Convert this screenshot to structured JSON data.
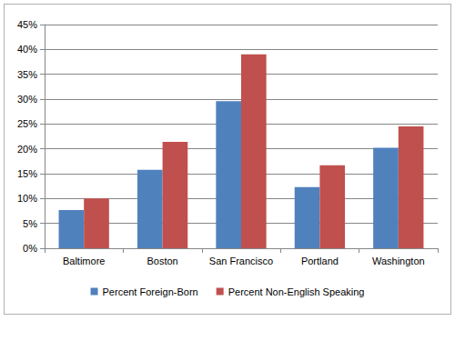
{
  "chart_data": {
    "type": "bar",
    "categories": [
      "Baltimore",
      "Boston",
      "San Francisco",
      "Portland",
      "Washington"
    ],
    "series": [
      {
        "name": "Percent Foreign-Born",
        "color": "#4f81bd",
        "values": [
          7.7,
          15.8,
          29.6,
          12.3,
          20.2
        ]
      },
      {
        "name": "Percent Non-English Speaking",
        "color": "#c0504d",
        "values": [
          10.0,
          21.4,
          39.0,
          16.7,
          24.5
        ]
      }
    ],
    "ylim": [
      0,
      45
    ],
    "yticks": [
      {
        "value": 0,
        "label": "0%"
      },
      {
        "value": 5,
        "label": "5%"
      },
      {
        "value": 10,
        "label": "10%"
      },
      {
        "value": 15,
        "label": "15%"
      },
      {
        "value": 20,
        "label": "20%"
      },
      {
        "value": 25,
        "label": "25%"
      },
      {
        "value": 30,
        "label": "30%"
      },
      {
        "value": 35,
        "label": "35%"
      },
      {
        "value": 40,
        "label": "40%"
      },
      {
        "value": 45,
        "label": "45%"
      }
    ],
    "grid": true,
    "legend": "bottom"
  }
}
